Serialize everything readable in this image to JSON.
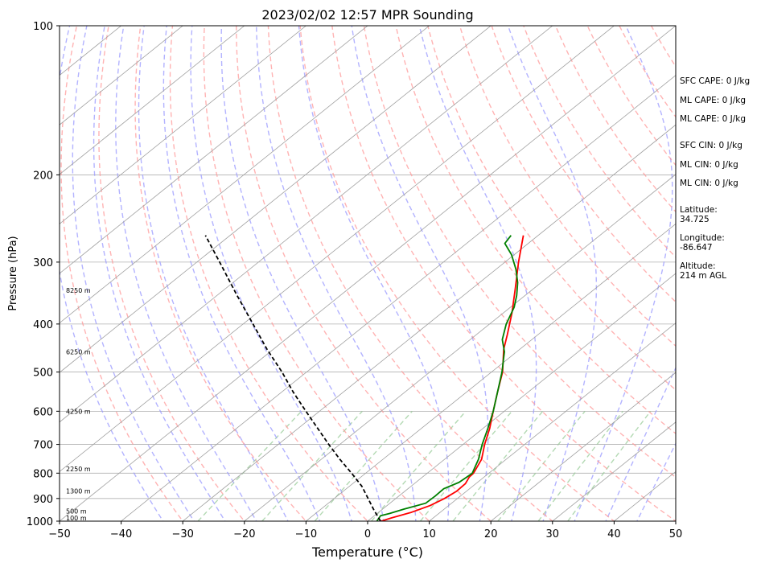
{
  "chart_data": {
    "type": "skew-t",
    "title": "2023/02/02 12:57 MPR Sounding",
    "xlabel": "Temperature (°C)",
    "ylabel": "Pressure (hPa)",
    "xlim": [
      -50,
      50
    ],
    "ylim": [
      1000,
      100
    ],
    "y_scale": "log",
    "x_ticks": [
      -50,
      -40,
      -30,
      -20,
      -10,
      0,
      10,
      20,
      30,
      40,
      50
    ],
    "x_tick_labels": [
      "−50",
      "−40",
      "−30",
      "−20",
      "−10",
      "0",
      "10",
      "20",
      "30",
      "40",
      "50"
    ],
    "y_ticks": [
      100,
      200,
      300,
      400,
      500,
      600,
      700,
      800,
      900,
      1000
    ],
    "y_tick_labels": [
      "100",
      "200",
      "300",
      "400",
      "500",
      "600",
      "700",
      "800",
      "900",
      "1000"
    ],
    "grid": true,
    "colors": {
      "temperature": "#ff0000",
      "dewpoint": "#008000",
      "parcel": "#000000",
      "isotherm": "#a0a0a0",
      "dry_adiabat": "#ff9999",
      "moist_adiabat": "#9999ff",
      "mixing_ratio": "#99cc99"
    },
    "series": [
      {
        "kind": "temperature",
        "points": [
          [
            1000,
            2.2
          ],
          [
            985,
            3.2
          ],
          [
            960,
            5.3
          ],
          [
            930,
            7.0
          ],
          [
            900,
            7.9
          ],
          [
            870,
            8.4
          ],
          [
            840,
            8.3
          ],
          [
            815,
            7.6
          ],
          [
            800,
            7.5
          ],
          [
            750,
            6.0
          ],
          [
            700,
            3.5
          ],
          [
            650,
            1.1
          ],
          [
            600,
            -1.8
          ],
          [
            550,
            -4.9
          ],
          [
            500,
            -8.2
          ],
          [
            450,
            -12.6
          ],
          [
            420,
            -15.0
          ],
          [
            380,
            -18.6
          ],
          [
            340,
            -22.9
          ],
          [
            300,
            -27.8
          ],
          [
            265,
            -32.4
          ]
        ]
      },
      {
        "kind": "dewpoint",
        "points": [
          [
            1000,
            1.5
          ],
          [
            975,
            1.0
          ],
          [
            965,
            2.0
          ],
          [
            945,
            3.5
          ],
          [
            920,
            5.8
          ],
          [
            890,
            5.9
          ],
          [
            860,
            5.8
          ],
          [
            835,
            7.0
          ],
          [
            815,
            7.2
          ],
          [
            800,
            7.3
          ],
          [
            750,
            5.5
          ],
          [
            700,
            3.1
          ],
          [
            650,
            0.8
          ],
          [
            600,
            -1.8
          ],
          [
            550,
            -4.9
          ],
          [
            500,
            -8.3
          ],
          [
            455,
            -12.0
          ],
          [
            430,
            -14.8
          ],
          [
            400,
            -17.3
          ],
          [
            370,
            -19.4
          ],
          [
            350,
            -21.4
          ],
          [
            330,
            -23.8
          ],
          [
            310,
            -26.8
          ],
          [
            290,
            -30.4
          ],
          [
            275,
            -33.8
          ],
          [
            265,
            -34.4
          ]
        ]
      },
      {
        "kind": "parcel",
        "points": [
          [
            1000,
            2.1
          ],
          [
            950,
            -1.2
          ],
          [
            900,
            -4.5
          ],
          [
            850,
            -8.0
          ],
          [
            800,
            -12.3
          ],
          [
            750,
            -17.0
          ],
          [
            700,
            -21.8
          ],
          [
            650,
            -26.8
          ],
          [
            600,
            -32.2
          ],
          [
            550,
            -38.0
          ],
          [
            500,
            -44.0
          ],
          [
            450,
            -51.0
          ],
          [
            400,
            -58.4
          ],
          [
            350,
            -66.8
          ],
          [
            300,
            -76.3
          ],
          [
            265,
            -84.0
          ]
        ]
      }
    ],
    "height_labels": [
      "100 m",
      "500 m",
      "1300 m",
      "2250 m",
      "4250 m",
      "6250 m",
      "8250 m"
    ],
    "height_label_pressures": [
      985,
      955,
      870,
      785,
      600,
      455,
      342
    ],
    "stats": [
      "SFC CAPE: 0 J/kg",
      "ML CAPE: 0 J/kg",
      "ML CAPE: 0 J/kg",
      "SFC CIN: 0 J/kg",
      "ML CIN: 0 J/kg",
      "ML CIN: 0 J/kg"
    ],
    "location": {
      "latitude_label": "Latitude:",
      "latitude": "34.725",
      "longitude_label": "Longitude:",
      "longitude": "-86.647",
      "altitude_label": "Altitude:",
      "altitude": "214 m AGL"
    }
  }
}
